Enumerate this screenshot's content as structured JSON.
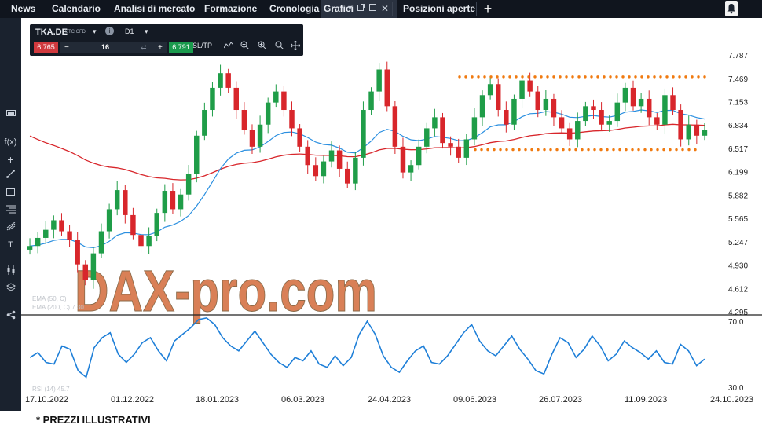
{
  "nav": {
    "tabs": [
      {
        "label": "News"
      },
      {
        "label": "Calendario"
      },
      {
        "label": "Analisi di mercato"
      },
      {
        "label": "Formazione"
      },
      {
        "label": "Cronologia"
      },
      {
        "label": "Grafici"
      },
      {
        "label": "Posizioni aperte"
      }
    ],
    "active_tab": "Grafici",
    "icons": [
      "chevron-down-icon",
      "external-window-icon",
      "maximize-icon",
      "close-icon",
      "plus-icon",
      "bell-icon"
    ]
  },
  "sidebar": {
    "icons": [
      "monitor-icon",
      "function-icon",
      "crosshair-icon",
      "trendline-icon",
      "rectangle-icon",
      "fibonacci-icon",
      "pitchfork-icon",
      "text-icon",
      "layers-icon",
      "share-icon"
    ],
    "function_label": "f(x)",
    "text_label": "T"
  },
  "toolbox": {
    "symbol": "TKA.DE",
    "symbol_type": "STC CFD",
    "timeframe": "D1",
    "sell_price": "6.765",
    "buy_price": "6.791",
    "quantity": "16",
    "sltp_label": "SL/TP",
    "minus": "−",
    "plus": "+",
    "info": "i"
  },
  "watermark": "DAX-pro.com",
  "legend": {
    "ema50": "EMA (50, C)",
    "ema200": "EMA (200, C) 7.30",
    "rsi": "RSI (14) 45.7"
  },
  "chart_data": [
    {
      "type": "candlestick",
      "title": "",
      "price_axis_ticks": [
        "7.787",
        "7.469",
        "7.153",
        "6.834",
        "6.517",
        "6.199",
        "5.882",
        "5.565",
        "5.247",
        "4.930",
        "4.612",
        "4.295"
      ],
      "ylim": [
        4.295,
        7.787
      ],
      "x_tick_labels": [
        "17.10.2022",
        "01.12.2022",
        "18.01.2023",
        "06.03.2023",
        "24.04.2023",
        "09.06.2023",
        "26.07.2023",
        "11.09.2023",
        "24.10.2023"
      ],
      "series": [
        {
          "name": "EMA (50, C)",
          "color": "#2a8fe0"
        },
        {
          "name": "EMA (200, C)",
          "color": "#d8262b"
        }
      ],
      "range_lines": [
        {
          "price": 7.5,
          "color": "#f07a10"
        },
        {
          "price": 6.51,
          "color": "#f07a10"
        }
      ],
      "close_sequence": [
        5.2,
        5.31,
        5.42,
        5.55,
        5.4,
        5.28,
        4.95,
        4.74,
        5.1,
        5.4,
        5.7,
        5.96,
        5.62,
        5.35,
        5.2,
        5.34,
        5.65,
        5.95,
        5.7,
        5.9,
        6.18,
        6.7,
        7.05,
        7.35,
        7.55,
        7.35,
        7.05,
        6.78,
        6.55,
        6.85,
        7.15,
        7.3,
        7.05,
        6.8,
        6.55,
        6.3,
        6.15,
        6.35,
        6.5,
        6.25,
        6.05,
        6.4,
        7.05,
        7.3,
        7.6,
        7.1,
        6.55,
        6.2,
        6.3,
        6.55,
        6.8,
        6.95,
        6.6,
        6.55,
        6.4,
        6.65,
        6.95,
        7.25,
        7.4,
        7.05,
        6.85,
        7.2,
        7.45,
        7.3,
        7.05,
        7.2,
        6.95,
        6.8,
        6.65,
        6.9,
        7.1,
        7.05,
        6.85,
        6.9,
        7.15,
        7.35,
        7.1,
        7.2,
        6.95,
        6.85,
        7.25,
        7.05,
        6.65,
        6.85,
        6.7,
        6.78
      ]
    },
    {
      "type": "line",
      "title": "",
      "name": "RSI (14)",
      "color": "#1e7fd8",
      "ylim": [
        30.0,
        70.0
      ],
      "axis_ticks": [
        "70.0",
        "30.0"
      ],
      "values": [
        48,
        51,
        45,
        44,
        55,
        53,
        40,
        36,
        54,
        60,
        63,
        50,
        45,
        50,
        57,
        60,
        52,
        46,
        58,
        62,
        66,
        71,
        72,
        68,
        60,
        55,
        52,
        58,
        64,
        57,
        50,
        45,
        42,
        48,
        46,
        52,
        44,
        42,
        49,
        43,
        48,
        62,
        70,
        62,
        49,
        42,
        39,
        46,
        52,
        55,
        45,
        44,
        49,
        56,
        63,
        68,
        58,
        52,
        49,
        55,
        61,
        53,
        47,
        40,
        38,
        50,
        60,
        57,
        48,
        53,
        61,
        55,
        46,
        50,
        58,
        54,
        51,
        47,
        52,
        45,
        44,
        56,
        52,
        43,
        47
      ]
    }
  ],
  "footer": {
    "note": "* PREZZI ILLUSTRATIVI"
  }
}
